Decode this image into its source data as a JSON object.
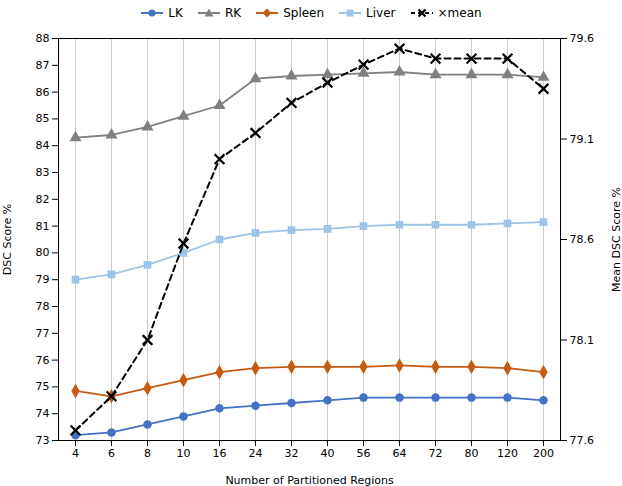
{
  "chart_data": {
    "type": "line",
    "categories": [
      "4",
      "6",
      "8",
      "10",
      "16",
      "24",
      "32",
      "40",
      "56",
      "64",
      "72",
      "80",
      "120",
      "200"
    ],
    "series": [
      {
        "name": "LK",
        "color": "#4472C4",
        "marker": "circle",
        "line_style": "solid",
        "values": [
          73.2,
          73.3,
          73.6,
          73.9,
          74.2,
          74.3,
          74.4,
          74.5,
          74.6,
          74.6,
          74.6,
          74.6,
          74.6,
          74.5
        ]
      },
      {
        "name": "RK",
        "color": "#808080",
        "marker": "triangle",
        "line_style": "solid",
        "values": [
          84.3,
          84.4,
          84.7,
          85.1,
          85.5,
          86.5,
          86.6,
          86.65,
          86.7,
          86.75,
          86.65,
          86.65,
          86.65,
          86.55
        ]
      },
      {
        "name": "Spleen",
        "color": "#C55A11",
        "marker": "diamond",
        "line_style": "solid",
        "values": [
          74.85,
          74.65,
          74.95,
          75.25,
          75.55,
          75.7,
          75.75,
          75.75,
          75.75,
          75.8,
          75.75,
          75.75,
          75.7,
          75.55
        ]
      },
      {
        "name": "Liver",
        "color": "#9DC3E6",
        "marker": "square",
        "line_style": "solid",
        "values": [
          79.0,
          79.2,
          79.55,
          80.0,
          80.5,
          80.75,
          80.85,
          80.9,
          81.0,
          81.05,
          81.05,
          81.05,
          81.1,
          81.15
        ]
      },
      {
        "name": "×mean",
        "color": "#000000",
        "marker": "x",
        "line_style": "dashed",
        "axis": "y2",
        "values": [
          77.65,
          77.82,
          78.1,
          78.58,
          79.0,
          79.13,
          79.28,
          79.38,
          79.47,
          79.55,
          79.5,
          79.5,
          79.5,
          79.35
        ]
      }
    ],
    "xlabel": "Number of Partitioned Regions",
    "ylabel": "DSC Score %",
    "y2label": "Mean DSC Score %",
    "ylim": [
      73,
      88
    ],
    "yticks": [
      73,
      74,
      75,
      76,
      77,
      78,
      79,
      80,
      81,
      82,
      83,
      84,
      85,
      86,
      87,
      88
    ],
    "y2lim": [
      77.6,
      79.6
    ],
    "y2ticks": [
      77.6,
      78.1,
      78.6,
      79.1,
      79.6
    ],
    "grid": "x",
    "legend": "top"
  }
}
